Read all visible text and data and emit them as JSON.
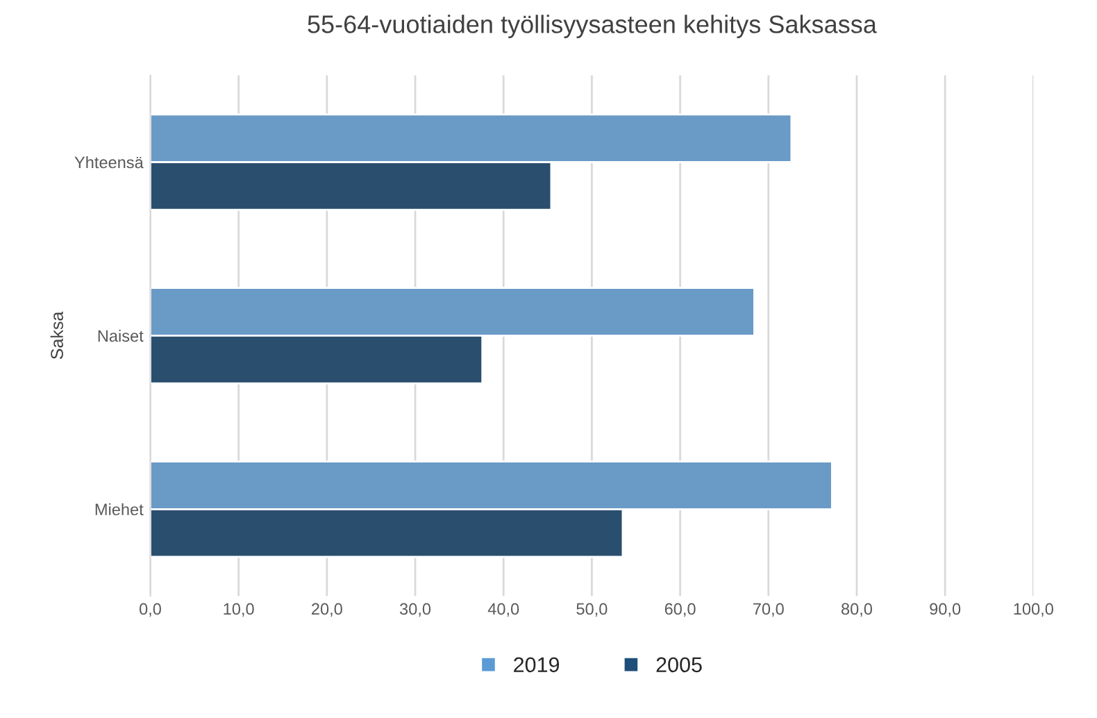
{
  "chart_data": {
    "type": "bar",
    "orientation": "horizontal",
    "title": "55-64-vuotiaiden työllisyysasteen kehitys Saksassa",
    "ylabel": "Saksa",
    "categories": [
      "Yhteensä",
      "Naiset",
      "Miehet"
    ],
    "series": [
      {
        "name": "2019",
        "color": "#5b9bd5",
        "values": [
          72.6,
          68.4,
          77.2
        ]
      },
      {
        "name": "2005",
        "color": "#1f4e79",
        "values": [
          45.4,
          37.6,
          53.5
        ]
      }
    ],
    "xlim": [
      0,
      100
    ],
    "xticks": [
      {
        "value": 0,
        "label": "0,0"
      },
      {
        "value": 10,
        "label": "10,0"
      },
      {
        "value": 20,
        "label": "20,0"
      },
      {
        "value": 30,
        "label": "30,0"
      },
      {
        "value": 40,
        "label": "40,0"
      },
      {
        "value": 50,
        "label": "50,0"
      },
      {
        "value": 60,
        "label": "60,0"
      },
      {
        "value": 70,
        "label": "70,0"
      },
      {
        "value": 80,
        "label": "80,0"
      },
      {
        "value": 90,
        "label": "90,0"
      },
      {
        "value": 100,
        "label": "100,0"
      }
    ],
    "grid": "x",
    "legend": "bottom"
  }
}
